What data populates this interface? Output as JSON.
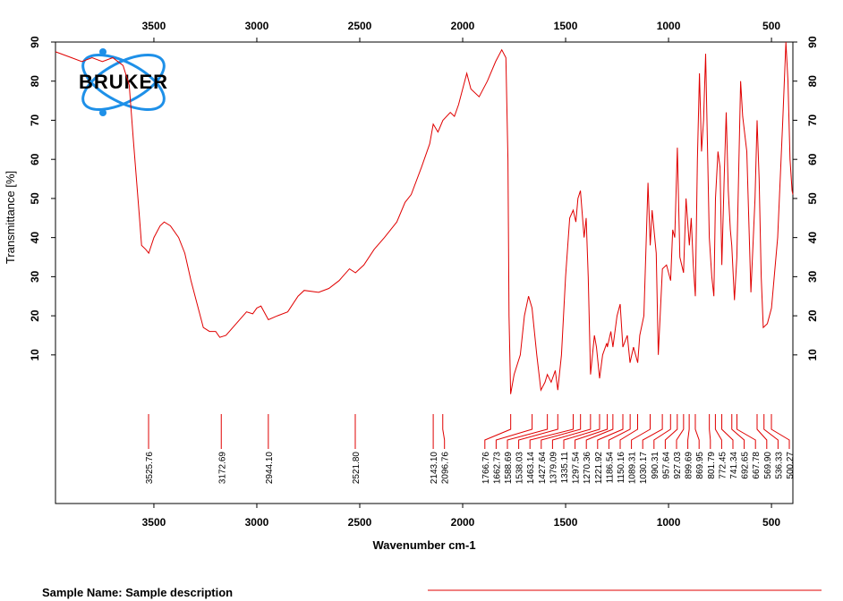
{
  "chart_data": {
    "type": "line",
    "logo_text": "BRUKER",
    "xlabel": "Wavenumber cm-1",
    "ylabel": "Transmittance [%]",
    "footer": "Sample Name: Sample description",
    "color": "#e00000",
    "xlim": [
      3978,
      396
    ],
    "ylim": [
      -28,
      90
    ],
    "xticks": [
      3500,
      3000,
      2500,
      2000,
      1500,
      1000,
      500
    ],
    "yticks": [
      10,
      20,
      30,
      40,
      50,
      60,
      70,
      80,
      90
    ],
    "x": [
      3978,
      3900,
      3850,
      3800,
      3750,
      3700,
      3650,
      3620,
      3600,
      3570,
      3560,
      3540,
      3525,
      3500,
      3470,
      3450,
      3420,
      3380,
      3350,
      3320,
      3290,
      3260,
      3230,
      3200,
      3180,
      3150,
      3100,
      3050,
      3020,
      3000,
      2980,
      2944,
      2900,
      2850,
      2800,
      2770,
      2700,
      2650,
      2600,
      2550,
      2521,
      2480,
      2430,
      2380,
      2320,
      2280,
      2250,
      2200,
      2160,
      2143,
      2120,
      2096,
      2060,
      2040,
      2020,
      2000,
      1980,
      1960,
      1920,
      1880,
      1840,
      1810,
      1790,
      1780,
      1775,
      1767,
      1750,
      1720,
      1700,
      1680,
      1663,
      1640,
      1620,
      1600,
      1589,
      1570,
      1550,
      1538,
      1520,
      1500,
      1480,
      1463,
      1450,
      1440,
      1428,
      1410,
      1400,
      1390,
      1379,
      1360,
      1350,
      1335,
      1320,
      1300,
      1297,
      1280,
      1270,
      1250,
      1235,
      1222,
      1200,
      1187,
      1170,
      1150,
      1140,
      1120,
      1100,
      1089,
      1080,
      1060,
      1050,
      1030,
      1010,
      990,
      980,
      970,
      957,
      945,
      927,
      915,
      899,
      890,
      880,
      870,
      860,
      850,
      840,
      830,
      820,
      802,
      790,
      780,
      772,
      760,
      750,
      741,
      730,
      720,
      710,
      700,
      693,
      680,
      668,
      650,
      640,
      620,
      600,
      580,
      570,
      560,
      550,
      540,
      520,
      500,
      470,
      445,
      430,
      420,
      410,
      400,
      396
    ],
    "values": [
      87.5,
      86,
      85,
      86,
      85,
      86,
      84,
      79,
      65,
      45,
      38,
      37,
      36,
      40,
      43,
      44,
      43,
      40,
      36,
      29,
      23,
      17,
      16,
      16,
      14.5,
      15,
      18,
      21,
      20.5,
      22,
      22.5,
      19,
      20,
      21,
      25,
      26.5,
      26,
      27,
      29,
      32,
      31,
      33,
      37,
      40,
      44,
      49,
      51,
      58,
      64,
      69,
      67,
      70,
      72,
      71,
      74,
      78,
      82,
      78,
      76,
      80,
      85,
      88,
      86,
      60,
      20,
      0,
      5,
      10,
      20,
      25,
      22,
      10,
      1,
      3,
      5,
      3,
      6,
      1,
      10,
      30,
      45,
      47,
      44,
      50,
      52,
      40,
      45,
      30,
      5,
      15,
      12,
      4,
      10,
      13,
      12,
      16,
      12,
      20,
      23,
      12,
      15,
      8,
      12,
      8,
      15,
      20,
      54,
      38,
      47,
      36,
      10,
      32,
      33,
      29,
      42,
      40,
      63,
      35,
      31,
      50,
      38,
      45,
      33,
      25,
      60,
      82,
      62,
      70,
      87,
      40,
      30,
      25,
      50,
      62,
      58,
      33,
      55,
      72,
      52,
      42,
      38,
      24,
      35,
      80,
      71,
      62,
      26,
      50,
      70,
      55,
      30,
      17,
      18,
      22,
      40,
      70,
      90,
      80,
      60,
      52,
      51
    ],
    "peaks": [
      {
        "value": 3525.76,
        "label": "3525.76"
      },
      {
        "value": 3172.69,
        "label": "3172.69"
      },
      {
        "value": 2944.1,
        "label": "2944.10"
      },
      {
        "value": 2521.8,
        "label": "2521.80"
      },
      {
        "value": 2143.1,
        "label": "2143.10"
      },
      {
        "value": 2096.76,
        "label": "2096.76"
      },
      {
        "value": 1766.76,
        "label": "1766.76"
      },
      {
        "value": 1662.73,
        "label": "1662.73"
      },
      {
        "value": 1588.69,
        "label": "1588.69"
      },
      {
        "value": 1538.03,
        "label": "1538.03"
      },
      {
        "value": 1463.14,
        "label": "1463.14"
      },
      {
        "value": 1427.64,
        "label": "1427.64"
      },
      {
        "value": 1379.09,
        "label": "1379.09"
      },
      {
        "value": 1335.11,
        "label": "1335.11"
      },
      {
        "value": 1297.54,
        "label": "1297.54"
      },
      {
        "value": 1270.36,
        "label": "1270.36"
      },
      {
        "value": 1221.92,
        "label": "1221.92"
      },
      {
        "value": 1186.54,
        "label": "1186.54"
      },
      {
        "value": 1150.16,
        "label": "1150.16"
      },
      {
        "value": 1089.31,
        "label": "1089.31"
      },
      {
        "value": 1030.17,
        "label": "1030.17"
      },
      {
        "value": 990.31,
        "label": "990.31"
      },
      {
        "value": 957.64,
        "label": "957.64"
      },
      {
        "value": 927.03,
        "label": "927.03"
      },
      {
        "value": 899.69,
        "label": "899.69"
      },
      {
        "value": 869.95,
        "label": "869.95"
      },
      {
        "value": 801.79,
        "label": "801.79"
      },
      {
        "value": 772.45,
        "label": "772.45"
      },
      {
        "value": 741.34,
        "label": "741.34"
      },
      {
        "value": 692.65,
        "label": "692.65"
      },
      {
        "value": 667.78,
        "label": "667.78"
      },
      {
        "value": 569.9,
        "label": "569.90"
      },
      {
        "value": 536.33,
        "label": "536.33"
      },
      {
        "value": 500.27,
        "label": "500.27"
      }
    ]
  }
}
